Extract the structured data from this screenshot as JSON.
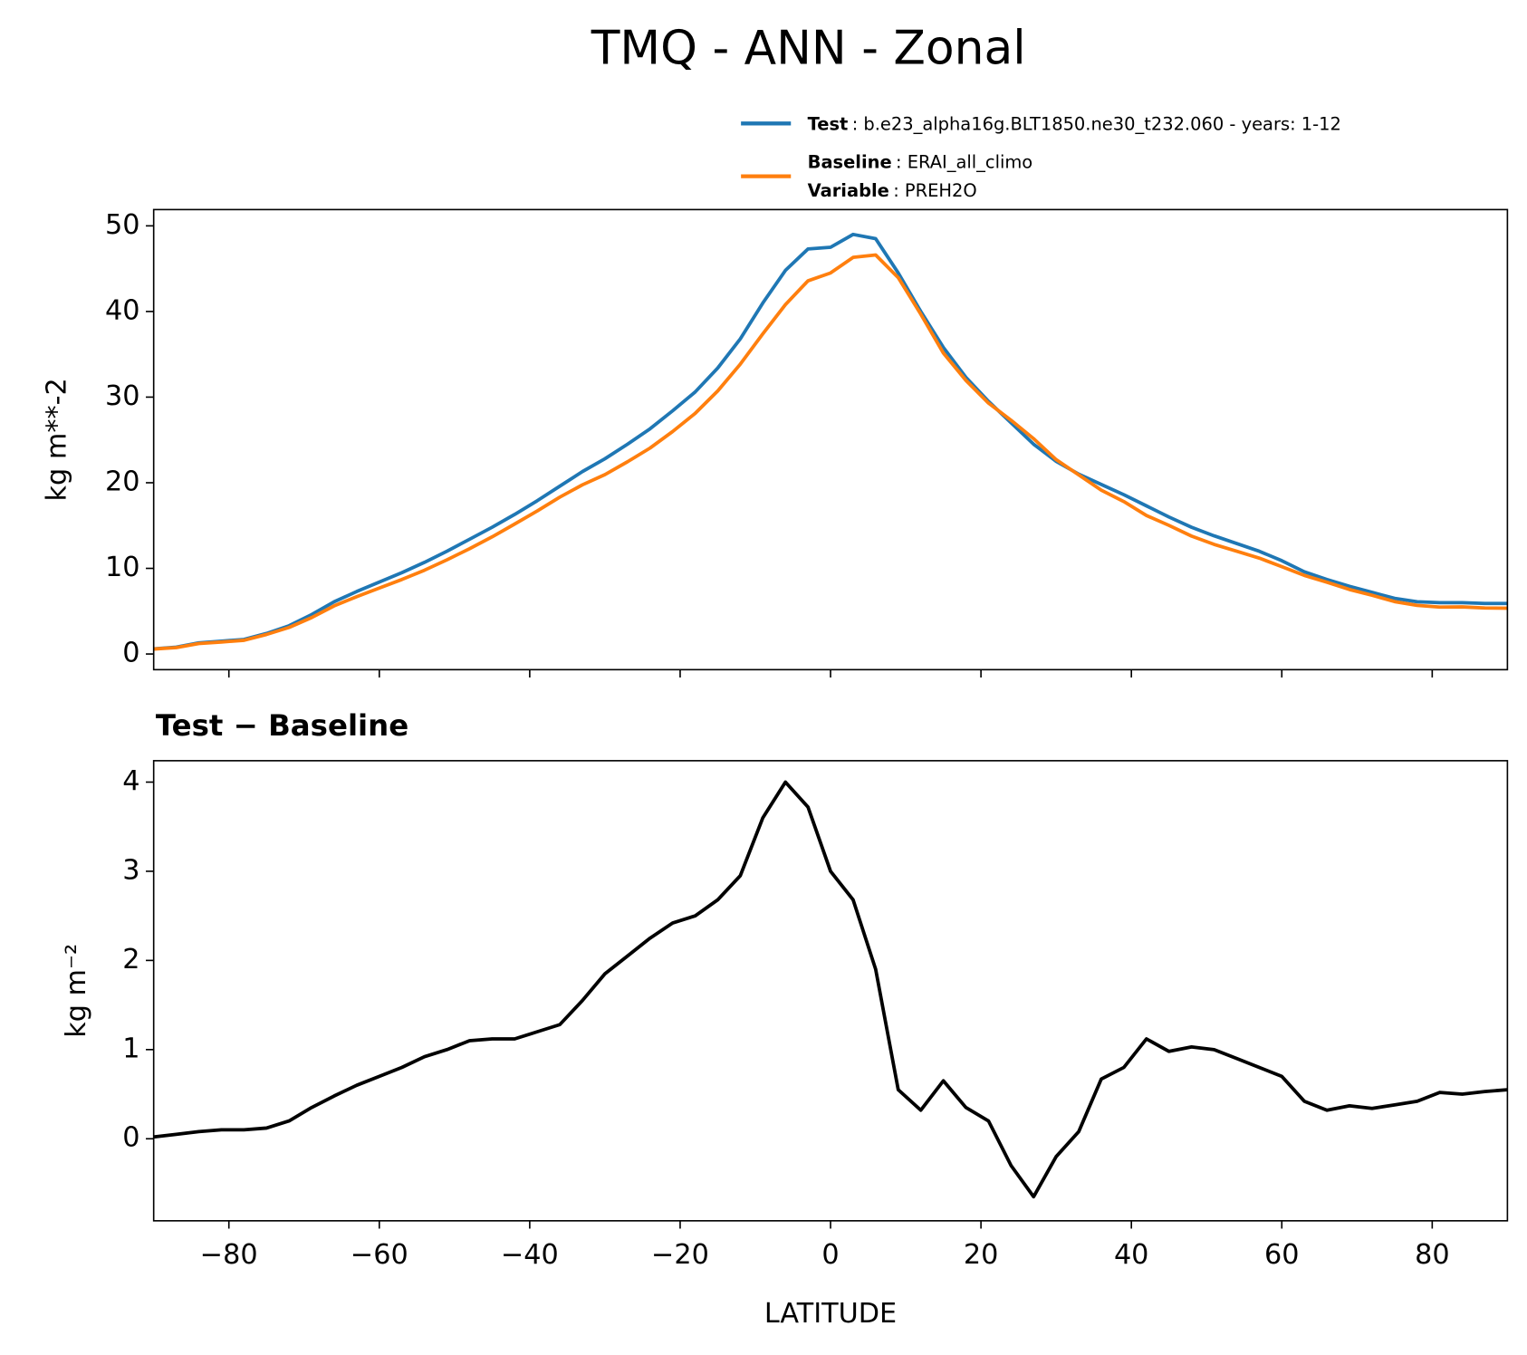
{
  "title": "TMQ - ANN - Zonal",
  "chart_data": [
    {
      "type": "line",
      "ylabel": "kg m**-2",
      "x": [
        -90,
        -87,
        -84,
        -81,
        -78,
        -75,
        -72,
        -69,
        -66,
        -63,
        -60,
        -57,
        -54,
        -51,
        -48,
        -45,
        -42,
        -39,
        -36,
        -33,
        -30,
        -27,
        -24,
        -21,
        -18,
        -15,
        -12,
        -9,
        -6,
        -3,
        0,
        3,
        6,
        9,
        12,
        15,
        18,
        21,
        24,
        27,
        30,
        33,
        36,
        39,
        42,
        45,
        48,
        51,
        54,
        57,
        60,
        63,
        66,
        69,
        72,
        75,
        78,
        81,
        84,
        87,
        90
      ],
      "series": [
        {
          "name": "Test",
          "detail": ": b.e23_alpha16g.BLT1850.ne30_t232.060 - years: 1-12",
          "color": "#1f77b4",
          "values": [
            0.6,
            0.8,
            1.3,
            1.5,
            1.7,
            2.4,
            3.3,
            4.6,
            6.1,
            7.3,
            8.4,
            9.5,
            10.7,
            12.0,
            13.4,
            14.8,
            16.3,
            17.9,
            19.6,
            21.3,
            22.8,
            24.5,
            26.3,
            28.4,
            30.6,
            33.4,
            36.8,
            41.0,
            44.8,
            47.3,
            47.5,
            49.0,
            48.5,
            44.5,
            40.0,
            35.8,
            32.3,
            29.5,
            27.0,
            24.5,
            22.5,
            21.0,
            19.8,
            18.6,
            17.3,
            16.0,
            14.8,
            13.8,
            12.9,
            12.0,
            10.9,
            9.6,
            8.7,
            7.9,
            7.2,
            6.5,
            6.1,
            6.0,
            6.0,
            5.9,
            5.9
          ]
        },
        {
          "name": "Baseline",
          "detail": ": ERAI_all_climo",
          "extra_name": "Variable",
          "extra_detail": ": PREH2O",
          "color": "#ff7f0e",
          "values": [
            0.58,
            0.75,
            1.22,
            1.4,
            1.6,
            2.28,
            3.1,
            4.25,
            5.62,
            6.7,
            7.7,
            8.7,
            9.78,
            11.0,
            12.3,
            13.68,
            15.18,
            16.7,
            18.32,
            19.75,
            20.95,
            22.45,
            24.05,
            25.98,
            28.1,
            30.72,
            33.85,
            37.4,
            40.8,
            43.58,
            44.5,
            46.32,
            46.6,
            43.95,
            39.68,
            35.15,
            31.95,
            29.3,
            27.3,
            25.15,
            22.7,
            20.92,
            19.13,
            17.8,
            16.18,
            15.02,
            13.77,
            12.8,
            12.0,
            11.2,
            10.2,
            9.18,
            8.38,
            7.53,
            6.86,
            6.12,
            5.68,
            5.48,
            5.5,
            5.37,
            5.35
          ]
        }
      ],
      "xlim": [
        -90,
        90
      ],
      "ylim": [
        -1.83,
        51.9
      ],
      "xticks": [
        -80,
        -60,
        -40,
        -20,
        0,
        20,
        40,
        60,
        80
      ],
      "show_xtick_labels": false,
      "yticks": [
        0,
        10,
        20,
        30,
        40,
        50
      ],
      "grid": false
    },
    {
      "type": "line",
      "title": "Test − Baseline",
      "ylabel": "kg m⁻²",
      "xlabel": "LATITUDE",
      "x": [
        -90,
        -87,
        -84,
        -81,
        -78,
        -75,
        -72,
        -69,
        -66,
        -63,
        -60,
        -57,
        -54,
        -51,
        -48,
        -45,
        -42,
        -39,
        -36,
        -33,
        -30,
        -27,
        -24,
        -21,
        -18,
        -15,
        -12,
        -9,
        -6,
        -3,
        0,
        3,
        6,
        9,
        12,
        15,
        18,
        21,
        24,
        27,
        30,
        33,
        36,
        39,
        42,
        45,
        48,
        51,
        54,
        57,
        60,
        63,
        66,
        69,
        72,
        75,
        78,
        81,
        84,
        87,
        90
      ],
      "series": [
        {
          "color": "#000000",
          "values": [
            0.02,
            0.05,
            0.08,
            0.1,
            0.1,
            0.12,
            0.2,
            0.35,
            0.48,
            0.6,
            0.7,
            0.8,
            0.92,
            1.0,
            1.1,
            1.12,
            1.12,
            1.2,
            1.28,
            1.55,
            1.85,
            2.05,
            2.25,
            2.42,
            2.5,
            2.68,
            2.95,
            3.6,
            4.0,
            3.72,
            3.0,
            2.68,
            1.9,
            0.55,
            0.32,
            0.65,
            0.35,
            0.2,
            -0.3,
            -0.65,
            -0.2,
            0.08,
            0.67,
            0.8,
            1.12,
            0.98,
            1.03,
            1.0,
            0.9,
            0.8,
            0.7,
            0.42,
            0.32,
            0.37,
            0.34,
            0.38,
            0.42,
            0.52,
            0.5,
            0.53,
            0.55
          ]
        }
      ],
      "xlim": [
        -90,
        90
      ],
      "ylim": [
        -0.92,
        4.24
      ],
      "xticks": [
        {
          "value": -80,
          "label": "−80"
        },
        {
          "value": -60,
          "label": "−60"
        },
        {
          "value": -40,
          "label": "−40"
        },
        {
          "value": -20,
          "label": "−20"
        },
        0,
        20,
        40,
        60,
        80
      ],
      "show_xtick_labels": true,
      "yticks": [
        0,
        1,
        2,
        3,
        4
      ],
      "grid": false
    }
  ]
}
